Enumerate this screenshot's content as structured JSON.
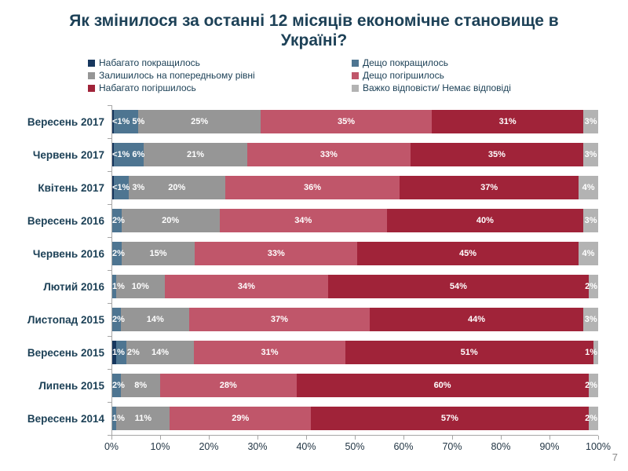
{
  "title": "Як змінилося за останні 12 місяців економічне становище в Україні?",
  "page_number": "7",
  "colors": {
    "title_text": "#1d4157",
    "axis_line": "#a6a6a6",
    "bar_label_text": "#ffffff"
  },
  "legend": {
    "columns": [
      [
        {
          "label": "Набагато покращилось",
          "color": "#17375e"
        },
        {
          "label": "Залишилось на попередньому рівні",
          "color": "#969696"
        },
        {
          "label": "Набагато погіршилось",
          "color": "#a02339"
        }
      ],
      [
        {
          "label": "Дещо покращилось",
          "color": "#4e7591"
        },
        {
          "label": "Дещо погіршилось",
          "color": "#c0566a"
        },
        {
          "label": "Важко відповісти/ Немає відповіді",
          "color": "#b3b3b3"
        }
      ]
    ]
  },
  "chart_data": {
    "type": "bar",
    "stacked": true,
    "orientation": "horizontal",
    "xlim": [
      0,
      100
    ],
    "x_tick_labels": [
      "0%",
      "10%",
      "20%",
      "30%",
      "40%",
      "50%",
      "60%",
      "70%",
      "80%",
      "90%",
      "100%"
    ],
    "value_label_note": "values below 1 are displayed as <1%",
    "categories": [
      "Вересень 2017",
      "Червень 2017",
      "Квітень 2017",
      "Вересень 2016",
      "Червень 2016",
      "Лютий 2016",
      "Листопад 2015",
      "Вересень 2015",
      "Липень 2015",
      "Вересень 2014"
    ],
    "series": [
      {
        "name": "Набагато покращилось",
        "color": "#17375e",
        "values": [
          0.5,
          0.5,
          0.5,
          0,
          0,
          0,
          0,
          1,
          0,
          0
        ]
      },
      {
        "name": "Дещо покращилось",
        "color": "#4e7591",
        "values": [
          5,
          6,
          3,
          2,
          2,
          1,
          2,
          2,
          2,
          1
        ]
      },
      {
        "name": "Залишилось на попередньому рівні",
        "color": "#969696",
        "values": [
          25,
          21,
          20,
          20,
          15,
          10,
          14,
          14,
          8,
          11
        ]
      },
      {
        "name": "Дещо погіршилось",
        "color": "#c0566a",
        "values": [
          35,
          33,
          36,
          34,
          33,
          34,
          37,
          31,
          28,
          29
        ]
      },
      {
        "name": "Набагато погіршилось",
        "color": "#a02339",
        "values": [
          31,
          35,
          37,
          40,
          45,
          54,
          44,
          51,
          60,
          57
        ]
      },
      {
        "name": "Важко відповісти/ Немає відповіді",
        "color": "#b3b3b3",
        "values": [
          3,
          3,
          4,
          3,
          4,
          2,
          3,
          1,
          2,
          2
        ]
      }
    ]
  }
}
